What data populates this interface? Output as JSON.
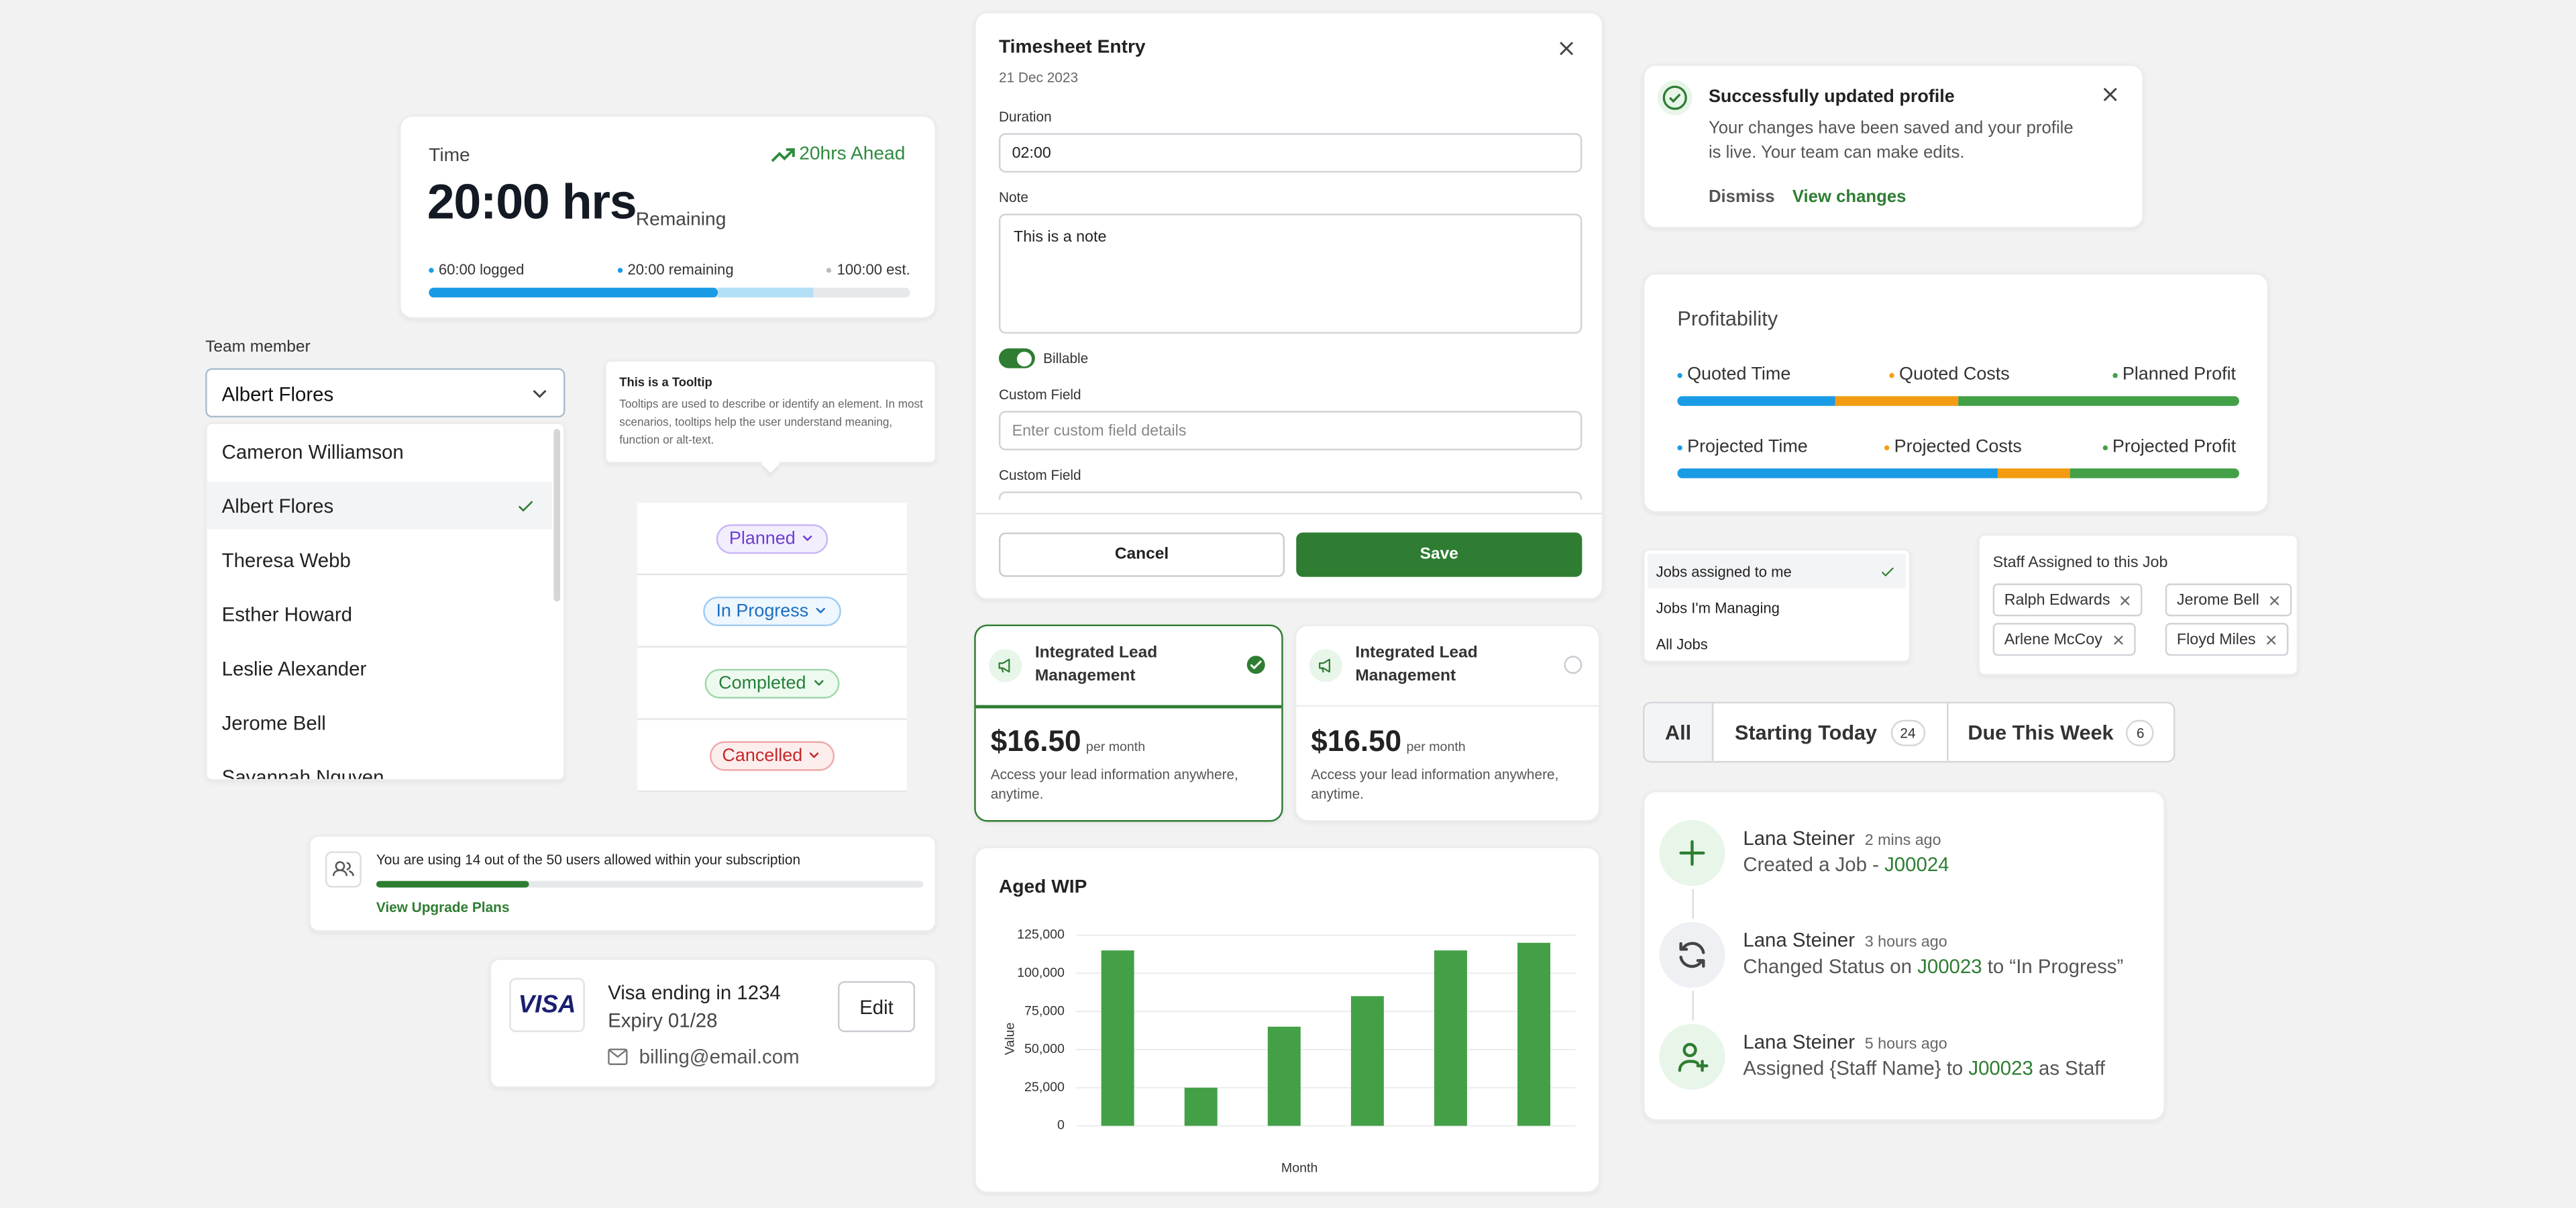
{
  "time_card": {
    "label": "Time",
    "trend": "20hrs Ahead",
    "value": "20:00 hrs",
    "sub": "Remaining",
    "legend": [
      "60:00 logged",
      "20:00 remaining",
      "100:00 est."
    ],
    "progress": {
      "logged": 60,
      "remaining": 20,
      "estimate": 100
    }
  },
  "team_member": {
    "label": "Team member",
    "selected": "Albert Flores",
    "options": [
      "Cameron Williamson",
      "Albert Flores",
      "Theresa Webb",
      "Esther Howard",
      "Leslie Alexander",
      "Jerome Bell",
      "Savannah Nguyen"
    ],
    "selected_index": 1
  },
  "tooltip": {
    "title": "This is a Tooltip",
    "text": "Tooltips are used to describe or identify an element. In most scenarios, tooltips help the user understand meaning, function or alt-text."
  },
  "statuses": [
    "Planned",
    "In Progress",
    "Completed",
    "Cancelled"
  ],
  "subscription": {
    "text": "You are using 14 out of the 50 users allowed within your subscription",
    "used": 14,
    "allowed": 50,
    "link": "View Upgrade Plans"
  },
  "payment": {
    "brand": "VISA",
    "card": "Visa ending in 1234",
    "expiry": "Expiry 01/28",
    "email": "billing@email.com",
    "button": "Edit"
  },
  "timesheet": {
    "title": "Timesheet Entry",
    "date": "21 Dec 2023",
    "duration_label": "Duration",
    "duration": "02:00",
    "note_label": "Note",
    "note": "This is a note",
    "toggle": "Billable",
    "custom_label": "Custom Field",
    "custom_placeholder": "Enter custom field details",
    "custom_label_2": "Custom Field",
    "cancel": "Cancel",
    "save": "Save"
  },
  "plans": [
    {
      "title": "Integrated Lead Management",
      "price": "$16.50",
      "period": "per month",
      "desc": "Access your lead information anywhere, anytime.",
      "selected": true
    },
    {
      "title": "Integrated Lead Management",
      "price": "$16.50",
      "period": "per month",
      "desc": "Access your lead information anywhere, anytime.",
      "selected": false
    }
  ],
  "aged_wip": {
    "type": "bar",
    "title": "Aged WIP",
    "x_label": "Month",
    "y_label": "Value",
    "categories": [
      null,
      null,
      null,
      null,
      null,
      null
    ],
    "values": [
      115000,
      25000,
      65000,
      85000,
      115000,
      120000
    ],
    "color": "#43a047",
    "grid": true,
    "ylim": [
      0,
      125000
    ],
    "yticks": [
      0,
      {
        "value": 25000,
        "label": "25,000"
      },
      {
        "value": 50000,
        "label": "50,000"
      },
      {
        "value": 75000,
        "label": "75,000"
      },
      {
        "value": 100000,
        "label": "100,000"
      },
      {
        "value": 125000,
        "label": "125,000"
      }
    ]
  },
  "toast": {
    "title": "Successfully updated profile",
    "text": "Your changes have been saved and your profile is live. Your team can make edits.",
    "dismiss": "Dismiss",
    "action": "View changes"
  },
  "profitability": {
    "title": "Profitability",
    "rows": [
      {
        "labels": [
          "Quoted Time",
          "Quoted Costs",
          "Planned Profit"
        ],
        "values": [
          28,
          22,
          50
        ]
      },
      {
        "labels": [
          "Projected Time",
          "Projected Costs",
          "Projected Profit"
        ],
        "values": [
          57,
          13,
          30
        ]
      }
    ]
  },
  "jobs_filter": {
    "options": [
      "Jobs assigned to me",
      "Jobs I'm Managing",
      "All Jobs"
    ],
    "selected_index": 0
  },
  "staff": {
    "title": "Staff Assigned to this Job",
    "tags": [
      "Ralph Edwards",
      "Jerome Bell",
      "Arlene McCoy",
      "Floyd Miles"
    ]
  },
  "tabs": [
    {
      "label": "All"
    },
    {
      "label": "Starting Today",
      "count": 24
    },
    {
      "label": "Due This Week",
      "count": 6
    }
  ],
  "activity": [
    {
      "name": "Lana Steiner",
      "time": "2 mins ago",
      "pre": "Created a Job - ",
      "job": "J00024"
    },
    {
      "name": "Lana Steiner",
      "time": "3 hours ago",
      "pre": "Changed Status on ",
      "job": "J00023",
      "post": " to “In Progress”"
    },
    {
      "name": "Lana Steiner",
      "time": "5 hours ago",
      "pre": "Assigned {Staff Name} to ",
      "job": "J00023",
      "post": " as Staff"
    }
  ]
}
